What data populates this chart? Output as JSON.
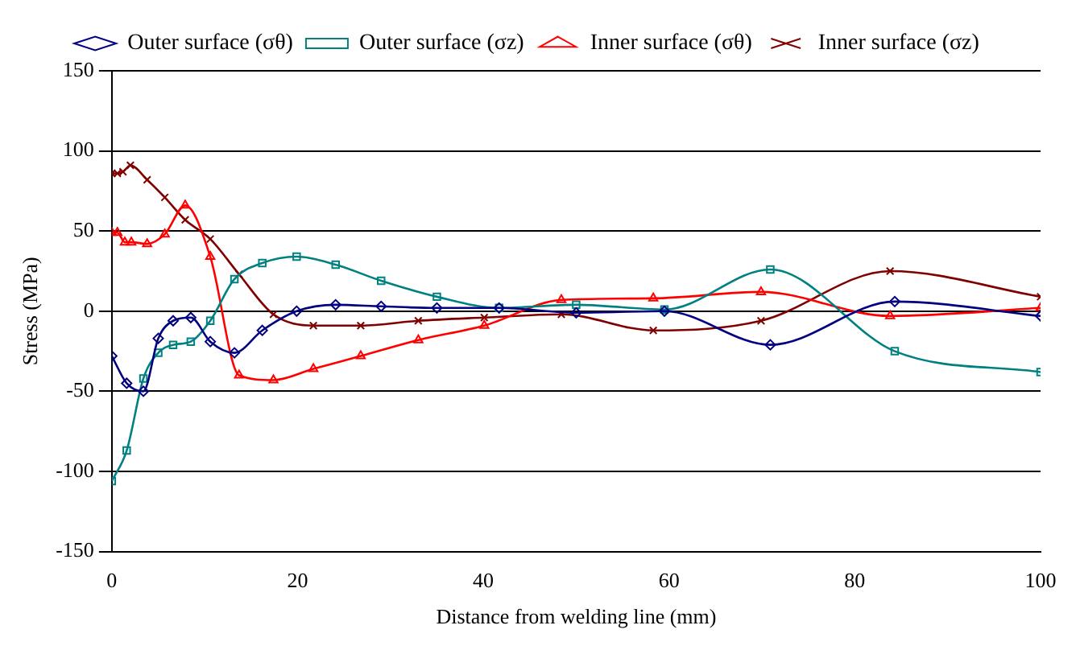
{
  "chart_data": {
    "type": "line",
    "xlabel": "Distance from welding line (mm)",
    "ylabel": "Stress (MPa)",
    "xlim": [
      0,
      100
    ],
    "xticks": [
      0,
      20,
      40,
      60,
      80,
      100
    ],
    "ylim": [
      -150,
      150
    ],
    "yticks": [
      -150,
      -100,
      -50,
      0,
      50,
      100,
      150
    ],
    "grid": "y",
    "legend": "top",
    "series": [
      {
        "name": "Outer surface (σθ)",
        "color": "#000080",
        "marker": "diamond",
        "x": [
          0,
          1.6,
          3.4,
          5,
          6.6,
          8.5,
          10.6,
          13.2,
          16.2,
          19.9,
          24.1,
          29,
          35,
          41.7,
          50,
          59.5,
          70.9,
          84.3,
          100
        ],
        "values": [
          -28,
          -45,
          -50,
          -17,
          -6,
          -4,
          -19,
          -26,
          -12,
          0,
          4,
          3,
          2,
          2,
          -1,
          0,
          -21,
          6,
          -3
        ]
      },
      {
        "name": "Outer surface (σz)",
        "color": "#008080",
        "marker": "square",
        "x": [
          0,
          1.6,
          3.4,
          5,
          6.6,
          8.5,
          10.6,
          13.2,
          16.2,
          19.9,
          24.1,
          29,
          35,
          41.7,
          50,
          59.5,
          70.9,
          84.3,
          100
        ],
        "values": [
          -106,
          -87,
          -42,
          -26,
          -21,
          -19,
          -6,
          20,
          30,
          34,
          29,
          19,
          9,
          2,
          4,
          1,
          26,
          -25,
          -38
        ]
      },
      {
        "name": "Inner surface (σθ)",
        "color": "#ff0000",
        "marker": "triangle",
        "x": [
          0,
          0.6,
          1.4,
          2.1,
          3.8,
          5.7,
          7.9,
          10.6,
          13.7,
          17.4,
          21.7,
          26.8,
          33,
          40.1,
          48.4,
          58.3,
          69.9,
          83.8,
          100
        ],
        "values": [
          49,
          49,
          43,
          43,
          42,
          48,
          66,
          34,
          -40,
          -43,
          -36,
          -28,
          -18,
          -9,
          7,
          8,
          12,
          -3,
          2
        ]
      },
      {
        "name": "Inner surface (σz)",
        "color": "#800000",
        "marker": "cross",
        "x": [
          0,
          0.6,
          1.2,
          2,
          3.8,
          5.7,
          7.9,
          10.6,
          13.7,
          17.4,
          21.7,
          26.8,
          33,
          40.1,
          48.4,
          58.3,
          69.9,
          83.8,
          100
        ],
        "values": [
          86,
          86,
          87,
          91,
          82,
          71,
          57,
          45,
          23,
          -2,
          -9,
          -9,
          -6,
          -4,
          -2,
          -12,
          -6,
          25,
          9
        ]
      }
    ]
  }
}
